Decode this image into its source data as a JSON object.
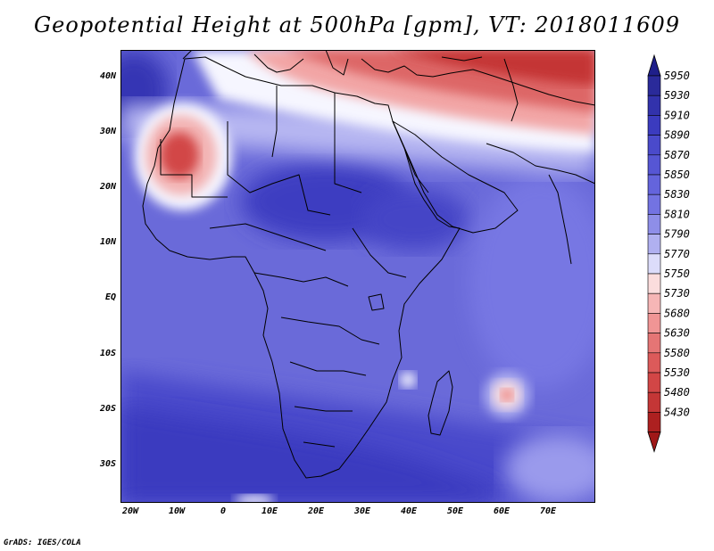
{
  "title": "Geopotential Height at 500hPa [gpm], VT: 2018011609",
  "credit": "GrADS: IGES/COLA",
  "lat_labels": [
    "40N",
    "30N",
    "20N",
    "10N",
    "EQ",
    "10S",
    "20S",
    "30S"
  ],
  "lat_values": [
    40,
    30,
    20,
    10,
    0,
    -10,
    -20,
    -30
  ],
  "lon_labels": [
    "20W",
    "10W",
    "0",
    "10E",
    "20E",
    "30E",
    "40E",
    "50E",
    "60E",
    "70E"
  ],
  "lon_values": [
    -20,
    -10,
    0,
    10,
    20,
    30,
    40,
    50,
    60,
    70
  ],
  "colorbar": {
    "levels": [
      "5950",
      "5930",
      "5910",
      "5890",
      "5870",
      "5850",
      "5830",
      "5810",
      "5790",
      "5770",
      "5750",
      "5730",
      "5680",
      "5630",
      "5580",
      "5530",
      "5480",
      "5430"
    ],
    "colors": [
      "#2a2a9a",
      "#3232ac",
      "#3b3bbf",
      "#4a4acb",
      "#5656d4",
      "#6464dc",
      "#7373e2",
      "#8e8ee8",
      "#b0b0f0",
      "#dcdcfa",
      "#fbdddd",
      "#f6b6b6",
      "#f09595",
      "#e57575",
      "#dc5a5a",
      "#d24646",
      "#c43636",
      "#ad2020"
    ],
    "top_arrow_color": "#1f1f8a",
    "bottom_arrow_color": "#a01818"
  },
  "map_colors": {
    "ocean_base": "#6a6ad9",
    "deep_blue": "#3c3cbf",
    "mid_blue": "#5353cf",
    "light_blue": "#9a9aec",
    "pale": "#f6f6ff",
    "red": "#d03a3a",
    "pink": "#f3b3b3"
  }
}
